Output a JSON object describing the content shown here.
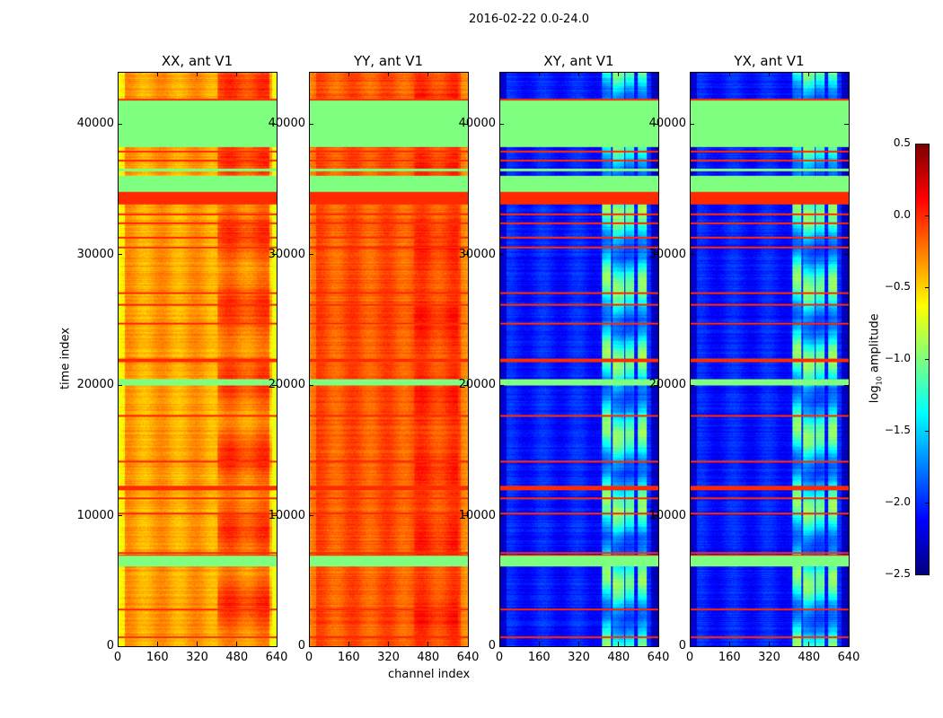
{
  "chart_data": {
    "type": "heatmap",
    "title": "2016-02-22 0.0-24.0",
    "xlabel": "channel index",
    "ylabel": "time index",
    "xlim": [
      0,
      640
    ],
    "ylim": [
      0,
      44000
    ],
    "xticks": [
      "0",
      "160",
      "320",
      "480",
      "640"
    ],
    "yticks": [
      "0",
      "10000",
      "20000",
      "30000",
      "40000"
    ],
    "colorbar": {
      "label_main": "log",
      "label_sub": "10",
      "label_rest": " amplitude",
      "range": [
        -2.5,
        0.5
      ],
      "ticks": [
        "0.5",
        "0.0",
        "−0.5",
        "−1.0",
        "−1.5",
        "−2.0",
        "−2.5"
      ],
      "colormap": "jet"
    },
    "flagged_value": -1.0,
    "flagged_time_ranges": [
      [
        6150,
        6950
      ],
      [
        20050,
        20550
      ],
      [
        34900,
        36100
      ],
      [
        36500,
        36700
      ],
      [
        38300,
        41900
      ]
    ],
    "rfi_lines": [
      700,
      2850,
      7000,
      7200,
      10200,
      11400,
      12100,
      12300,
      14200,
      17700,
      21900,
      22050,
      24800,
      26200,
      27100,
      30600,
      31400,
      32500,
      33200,
      37300,
      38000,
      41100,
      42000
    ],
    "strong_time_ranges": [
      [
        33950,
        34900
      ]
    ],
    "panels": [
      {
        "title": "XX, ant V1",
        "base": -0.35,
        "edge_drop": -0.3,
        "bright_channels": [
          [
            400,
            620
          ]
        ],
        "bright_gain": 0.25
      },
      {
        "title": "YY, ant V1",
        "base": -0.12,
        "edge_drop": -0.15,
        "bright_channels": [
          [
            420,
            600
          ]
        ],
        "bright_gain": 0.1
      },
      {
        "title": "XY, ant V1",
        "base": -2.05,
        "edge_drop": -0.25,
        "bright_channels": [
          [
            410,
            445
          ],
          [
            455,
            500
          ],
          [
            505,
            540
          ],
          [
            555,
            590
          ]
        ],
        "bright_gain": 0.9
      },
      {
        "title": "YX, ant V1",
        "base": -2.05,
        "edge_drop": -0.25,
        "bright_channels": [
          [
            410,
            445
          ],
          [
            455,
            500
          ],
          [
            505,
            540
          ],
          [
            555,
            590
          ]
        ],
        "bright_gain": 0.9
      }
    ]
  }
}
